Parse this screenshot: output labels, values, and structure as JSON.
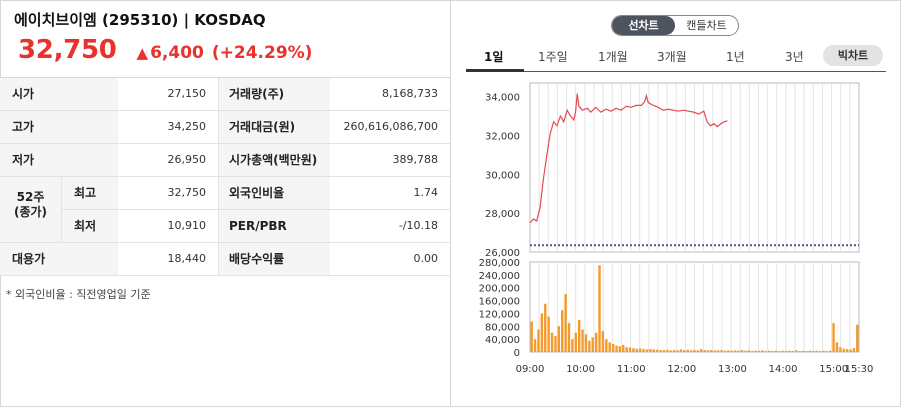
{
  "header": {
    "name": "에이치브이엠 (295310) | KOSDAQ",
    "price": "32,750",
    "change_arrow": "▲",
    "change": "6,400",
    "change_pct": "(+24.29%)",
    "up_color": "#e8322c"
  },
  "table": {
    "rows": [
      {
        "l1": "시가",
        "v1": "27,150",
        "l2": "거래량(주)",
        "v2": "8,168,733"
      },
      {
        "l1": "고가",
        "v1": "34,250",
        "l2": "거래대금(원)",
        "v2": "260,616,086,700"
      },
      {
        "l1": "저가",
        "v1": "26,950",
        "l2": "시가총액(백만원)",
        "v2": "389,788"
      }
    ],
    "week52": {
      "label": "52주\n(종가)",
      "high_label": "최고",
      "high": "32,750",
      "low_label": "최저",
      "low": "10,910"
    },
    "w52_right": [
      {
        "l2": "외국인비율",
        "v2": "1.74"
      },
      {
        "l2": "PER/PBR",
        "v2": "-/10.18"
      }
    ],
    "last": {
      "l1": "대용가",
      "v1": "18,440",
      "l2": "배당수익률",
      "v2": "0.00"
    }
  },
  "note": "* 외국인비율 : 직전영업일 기준",
  "chart_toggle": {
    "line": "선차트",
    "candle": "캔들차트"
  },
  "period_tabs": [
    "1일",
    "1주일",
    "1개월",
    "3개월",
    "1년",
    "3년"
  ],
  "big_chart": "빅차트",
  "chart_data": {
    "type": "line",
    "xlabel": "",
    "ylabel": "",
    "x_ticks": [
      "09:00",
      "10:00",
      "11:00",
      "12:00",
      "13:00",
      "14:00",
      "15:00",
      "15:30"
    ],
    "price_axis": {
      "ticks": [
        "26,000",
        "28,000",
        "30,000",
        "32,000",
        "34,000"
      ],
      "ylim": [
        26000,
        34700
      ]
    },
    "prev_close": 26350,
    "price_series": {
      "color": "#e54a52",
      "points": [
        [
          0,
          27500
        ],
        [
          4,
          27700
        ],
        [
          8,
          27600
        ],
        [
          12,
          28300
        ],
        [
          16,
          29800
        ],
        [
          20,
          31000
        ],
        [
          24,
          32100
        ],
        [
          28,
          32700
        ],
        [
          32,
          32500
        ],
        [
          36,
          33000
        ],
        [
          40,
          32700
        ],
        [
          44,
          33300
        ],
        [
          48,
          33000
        ],
        [
          52,
          32800
        ],
        [
          54,
          33200
        ],
        [
          56,
          34150
        ],
        [
          58,
          33500
        ],
        [
          62,
          33300
        ],
        [
          68,
          33400
        ],
        [
          72,
          33200
        ],
        [
          78,
          33450
        ],
        [
          84,
          33200
        ],
        [
          90,
          33350
        ],
        [
          96,
          33250
        ],
        [
          102,
          33400
        ],
        [
          108,
          33300
        ],
        [
          114,
          33500
        ],
        [
          120,
          33450
        ],
        [
          126,
          33550
        ],
        [
          132,
          33550
        ],
        [
          136,
          33750
        ],
        [
          138,
          34050
        ],
        [
          140,
          33700
        ],
        [
          146,
          33550
        ],
        [
          152,
          33450
        ],
        [
          158,
          33300
        ],
        [
          164,
          33350
        ],
        [
          170,
          33300
        ],
        [
          176,
          33250
        ],
        [
          182,
          33300
        ],
        [
          188,
          33250
        ],
        [
          194,
          33200
        ],
        [
          200,
          33100
        ],
        [
          206,
          33250
        ],
        [
          210,
          32700
        ],
        [
          214,
          32500
        ],
        [
          218,
          32600
        ],
        [
          222,
          32450
        ],
        [
          226,
          32600
        ],
        [
          230,
          32700
        ],
        [
          234,
          32750
        ]
      ]
    },
    "volume_axis": {
      "ticks": [
        "0",
        "40,000",
        "80,000",
        "120,000",
        "160,000",
        "200,000",
        "240,000",
        "280,000"
      ],
      "ylim": [
        0,
        280000
      ]
    },
    "volume_series": {
      "color": "#f39a2a",
      "values": [
        95000,
        40000,
        70000,
        120000,
        150000,
        110000,
        60000,
        50000,
        80000,
        130000,
        180000,
        90000,
        40000,
        60000,
        100000,
        70000,
        55000,
        35000,
        45000,
        60000,
        270000,
        65000,
        40000,
        30000,
        25000,
        20000,
        18000,
        22000,
        15000,
        14000,
        12000,
        10000,
        11000,
        9000,
        8000,
        9000,
        8000,
        7000,
        6000,
        6000,
        7000,
        5000,
        6000,
        5000,
        8000,
        6000,
        7000,
        5000,
        6000,
        5000,
        9000,
        6000,
        5000,
        6000,
        5000,
        5000,
        6000,
        4000,
        5000,
        4000,
        5000,
        4000,
        6000,
        4000,
        5000,
        3000,
        4000,
        4000,
        5000,
        3000,
        4000,
        3000,
        4000,
        3000,
        4000,
        3000,
        4000,
        3000,
        5000,
        3000,
        4000,
        3000,
        4000,
        3000,
        4000,
        3000,
        4000,
        3000,
        4000,
        90000,
        30000,
        15000,
        10000,
        9000,
        8000,
        12000,
        85000
      ]
    }
  }
}
